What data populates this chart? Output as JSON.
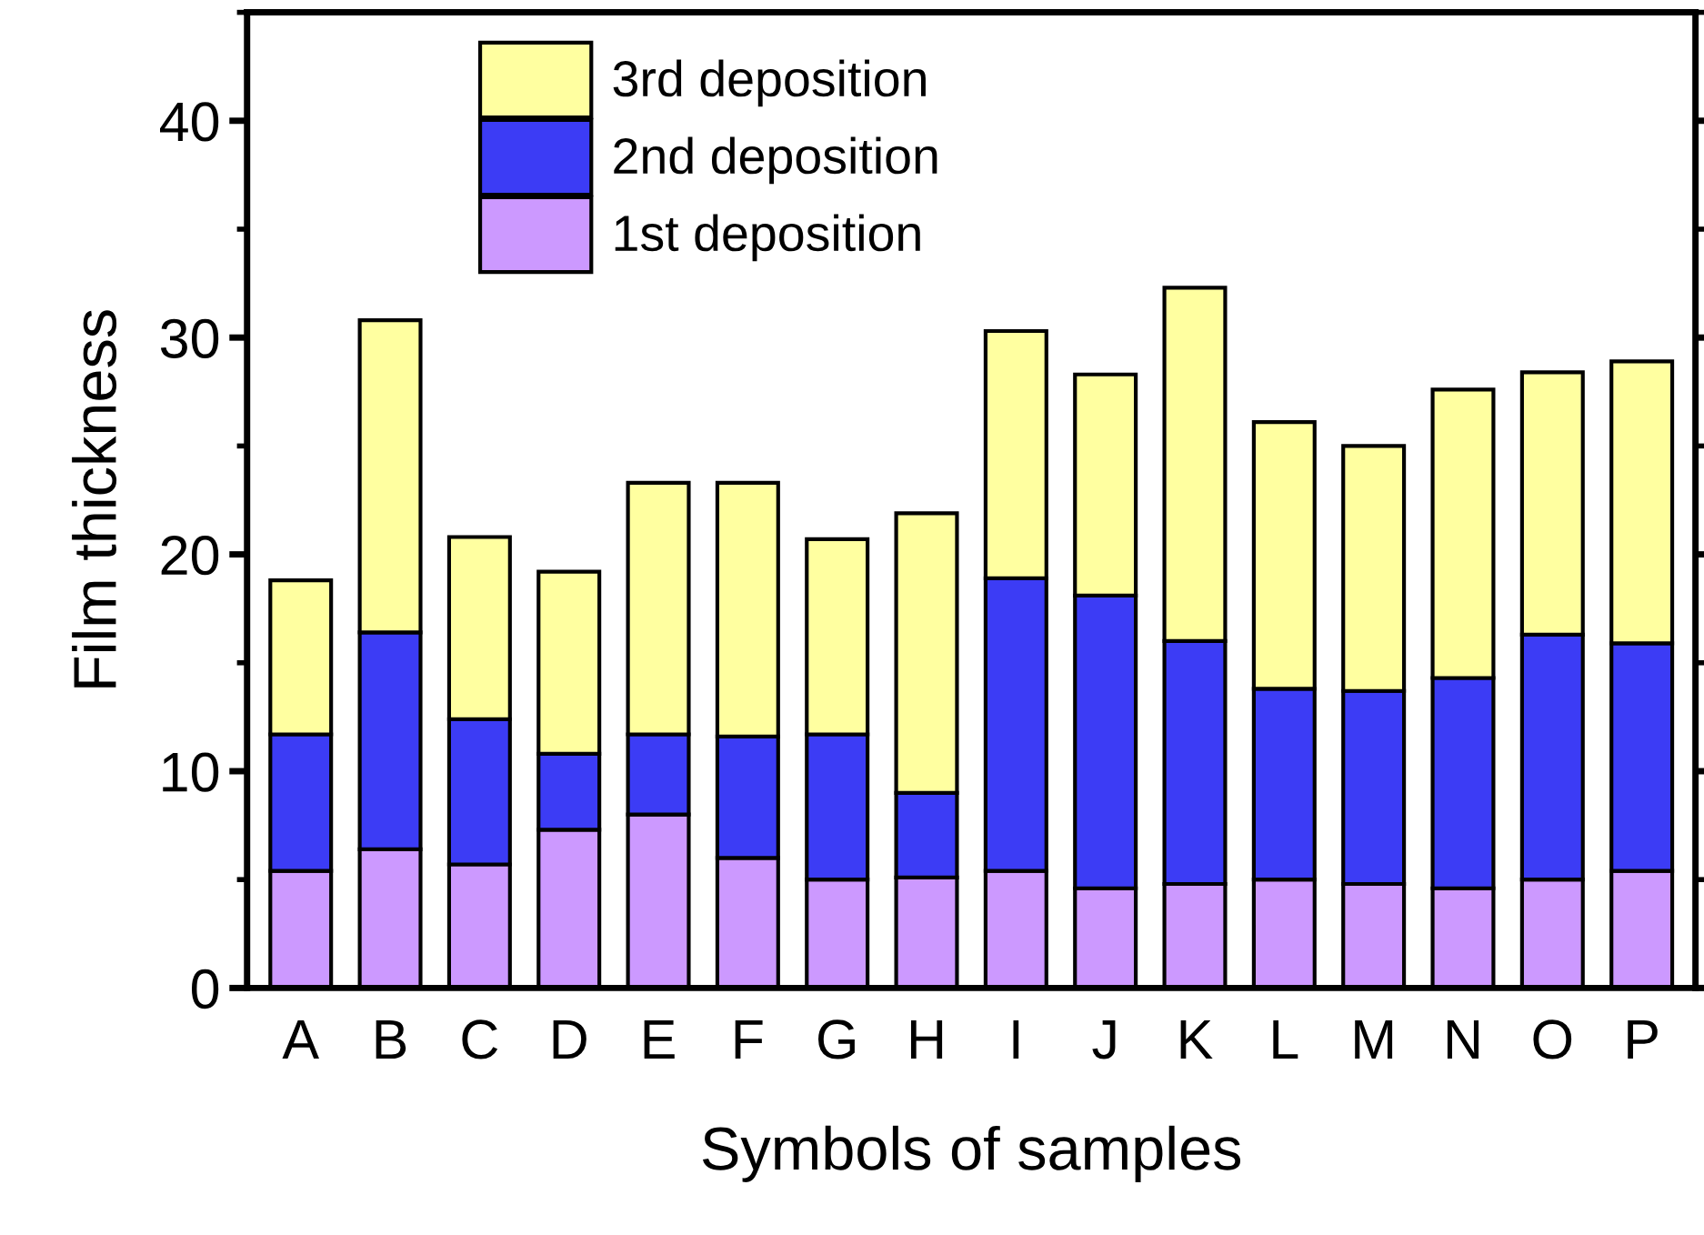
{
  "chart_data": {
    "type": "bar",
    "stacked": true,
    "xlabel": "Symbols of samples",
    "ylabel": "Film thickness",
    "categories": [
      "A",
      "B",
      "C",
      "D",
      "E",
      "F",
      "G",
      "H",
      "I",
      "J",
      "K",
      "L",
      "M",
      "N",
      "O",
      "P"
    ],
    "series": [
      {
        "name": "1st deposition",
        "color": "#cc99ff",
        "values": [
          5.4,
          6.4,
          5.7,
          7.3,
          8.0,
          6.0,
          5.0,
          5.1,
          5.4,
          4.6,
          4.8,
          5.0,
          4.8,
          4.6,
          5.0,
          5.4
        ]
      },
      {
        "name": "2nd deposition",
        "color": "#3c3cf5",
        "values": [
          6.3,
          10.0,
          6.7,
          3.5,
          3.7,
          5.6,
          6.7,
          3.9,
          13.5,
          13.5,
          11.2,
          8.8,
          8.9,
          9.7,
          11.3,
          10.5
        ]
      },
      {
        "name": "3rd deposition",
        "color": "#ffffa0",
        "values": [
          7.1,
          14.4,
          8.4,
          8.4,
          11.6,
          11.7,
          9.0,
          12.9,
          11.4,
          10.2,
          16.3,
          12.3,
          11.3,
          13.3,
          12.1,
          13.0
        ]
      }
    ],
    "ylim": [
      0,
      45
    ],
    "yticks": [
      0,
      10,
      20,
      30,
      40
    ],
    "grid": false,
    "legend": "top left"
  }
}
